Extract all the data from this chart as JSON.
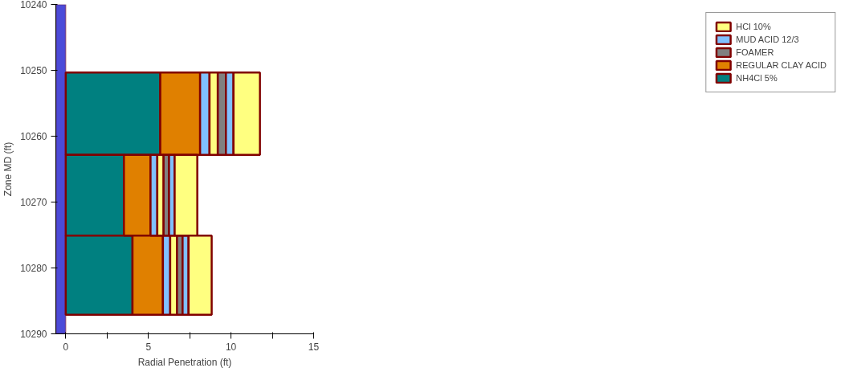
{
  "chart_data": {
    "type": "bar",
    "orientation": "horizontal",
    "stacked": true,
    "xlabel": "Radial Penetration (ft)",
    "ylabel": "Zone MD (ft)",
    "x": [
      10256.6,
      10269.1,
      10281.1
    ],
    "xlim": [
      -0.6,
      15
    ],
    "xticks": [
      0,
      {
        "value": 2.5,
        "label": null
      },
      5,
      {
        "value": 7.5,
        "label": null
      },
      10,
      {
        "value": 12.5,
        "label": null
      },
      15
    ],
    "ylim": [
      10290,
      10240
    ],
    "yticks": [
      10240,
      10250,
      10260,
      10270,
      10280,
      10290
    ],
    "grid": false,
    "legend": "right",
    "bands": [
      {
        "axis": "x",
        "from": -0.6,
        "to": 0,
        "color": "#4b4bd8"
      }
    ],
    "series": [
      {
        "name": "NH4Cl 5%",
        "color": "#008080",
        "values": [
          5.72,
          3.52,
          4.04
        ]
      },
      {
        "name": "REGULAR CLAY ACID",
        "color": "#e08000",
        "values": [
          2.41,
          1.61,
          1.84
        ]
      },
      {
        "color": "#80c0ff",
        "values": [
          0.57,
          0.41,
          0.44
        ]
      },
      {
        "color": "#ffff80",
        "values": [
          0.5,
          0.38,
          0.41
        ]
      },
      {
        "name": "FOAMER",
        "color": "#808080",
        "values": [
          0.49,
          0.33,
          0.34
        ]
      },
      {
        "name": "MUD ACID 12/3",
        "color": "#80c0ff",
        "values": [
          0.46,
          0.34,
          0.36
        ]
      },
      {
        "name": "HCl 10%",
        "color": "#ffff80",
        "values": [
          1.6,
          1.37,
          1.4
        ]
      }
    ]
  }
}
